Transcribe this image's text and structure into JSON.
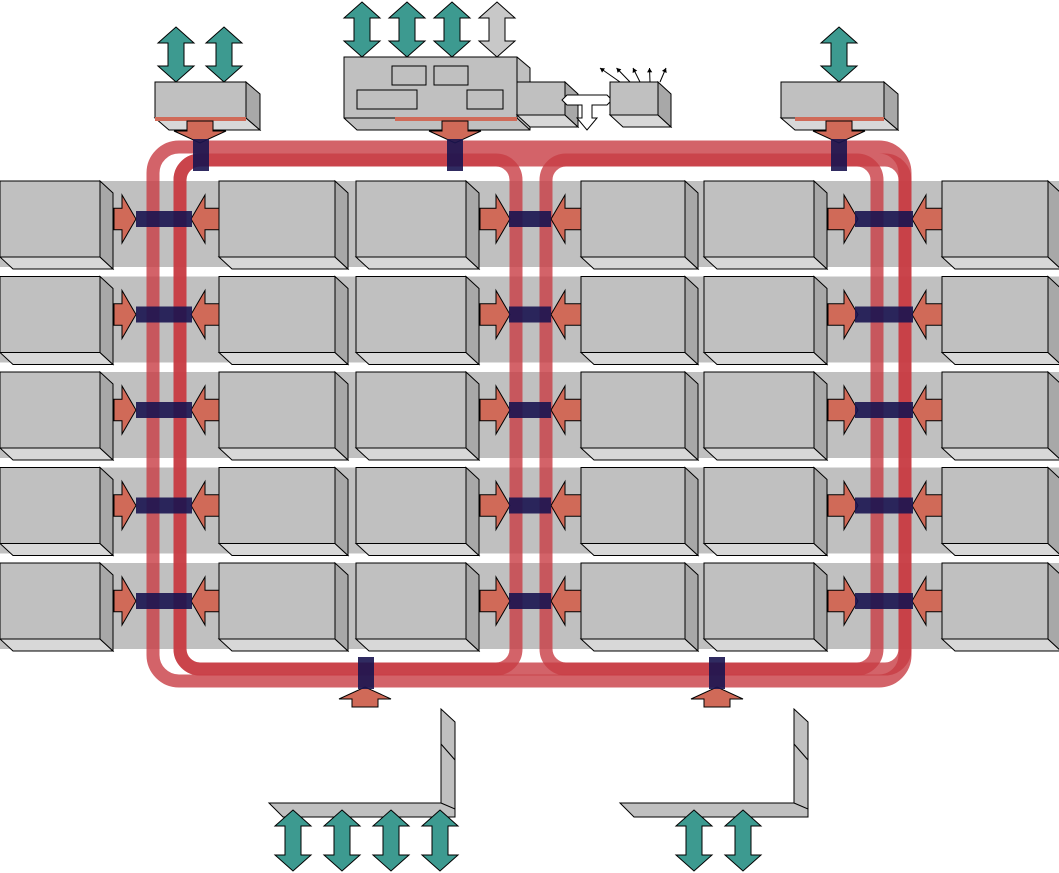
{
  "colors": {
    "box_face": "#c0c0c0",
    "box_top": "#d8d8d8",
    "box_side": "#a8a8a8",
    "box_edge": "#000000",
    "ring": "#c83c44",
    "ring_opacity": 0.8,
    "junction": "#1a1450",
    "port_arrow": "#d06a58",
    "io_arrow": "#3d9a90",
    "io_arrow_inactive": "#c8c8c8"
  },
  "icons": {
    "port_arrow": "arrow-right-icon",
    "io_arrow": "double-arrow-vertical-icon",
    "junction": "ring-stop-icon"
  },
  "grid": {
    "rows": 5,
    "node_columns": 6,
    "ring_columns": 3
  },
  "top_units": [
    {
      "name": "left-io-unit",
      "io_arrows": 2,
      "inactive": 0
    },
    {
      "name": "center-control-unit",
      "io_arrows": 4,
      "inactive": 1
    },
    {
      "name": "right-io-unit",
      "io_arrows": 1,
      "inactive": 0
    }
  ],
  "bottom_units": [
    {
      "name": "bottom-left-io-unit",
      "io_arrows": 4
    },
    {
      "name": "bottom-right-io-unit",
      "io_arrows": 2
    }
  ],
  "fan_out_arrows": 5
}
